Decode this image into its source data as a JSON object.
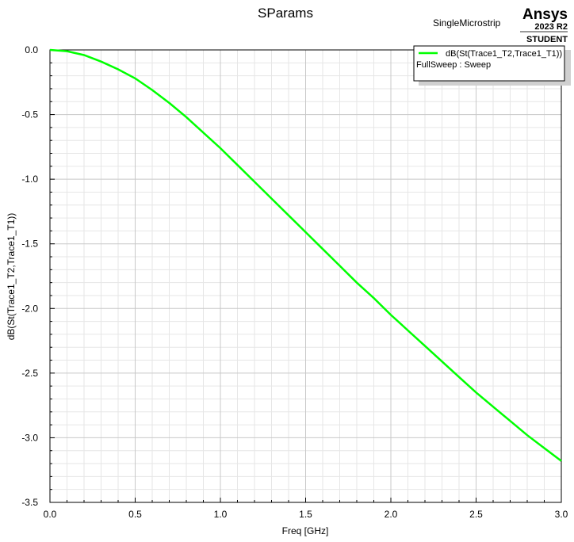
{
  "header": {
    "title": "SParams",
    "design_name": "SingleMicrostrip",
    "brand": "Ansys",
    "version": "2023 R2",
    "edition": "STUDENT"
  },
  "legend": {
    "series_label": "dB(St(Trace1_T2,Trace1_T1))",
    "sweep_label": "FullSweep : Sweep"
  },
  "colors": {
    "series": "#00ff00",
    "grid_major": "#c8c8c8",
    "grid_minor": "#e6e6e6"
  },
  "chart_data": {
    "type": "line",
    "title": "SParams",
    "xlabel": "Freq [GHz]",
    "ylabel": "dB(St(Trace1_T2,Trace1_T1))",
    "xlim": [
      0,
      3
    ],
    "ylim": [
      -3.5,
      0
    ],
    "x_ticks": [
      "0.0",
      "0.5",
      "1.0",
      "1.5",
      "2.0",
      "2.5",
      "3.0"
    ],
    "y_ticks": [
      "0.0",
      "-0.5",
      "-1.0",
      "-1.5",
      "-2.0",
      "-2.5",
      "-3.0",
      "-3.5"
    ],
    "grid": true,
    "legend_position": "top-right",
    "series": [
      {
        "name": "dB(St(Trace1_T2,Trace1_T1))",
        "x": [
          0.0,
          0.1,
          0.2,
          0.3,
          0.4,
          0.5,
          0.6,
          0.7,
          0.8,
          0.9,
          1.0,
          1.1,
          1.2,
          1.3,
          1.4,
          1.5,
          1.6,
          1.7,
          1.8,
          1.9,
          2.0,
          2.1,
          2.2,
          2.3,
          2.4,
          2.5,
          2.6,
          2.7,
          2.8,
          2.9,
          3.0
        ],
        "y": [
          0.0,
          -0.01,
          -0.04,
          -0.09,
          -0.15,
          -0.22,
          -0.31,
          -0.41,
          -0.52,
          -0.64,
          -0.76,
          -0.89,
          -1.02,
          -1.15,
          -1.28,
          -1.41,
          -1.54,
          -1.67,
          -1.8,
          -1.92,
          -2.05,
          -2.17,
          -2.29,
          -2.41,
          -2.53,
          -2.65,
          -2.76,
          -2.87,
          -2.98,
          -3.08,
          -3.18
        ]
      }
    ]
  }
}
